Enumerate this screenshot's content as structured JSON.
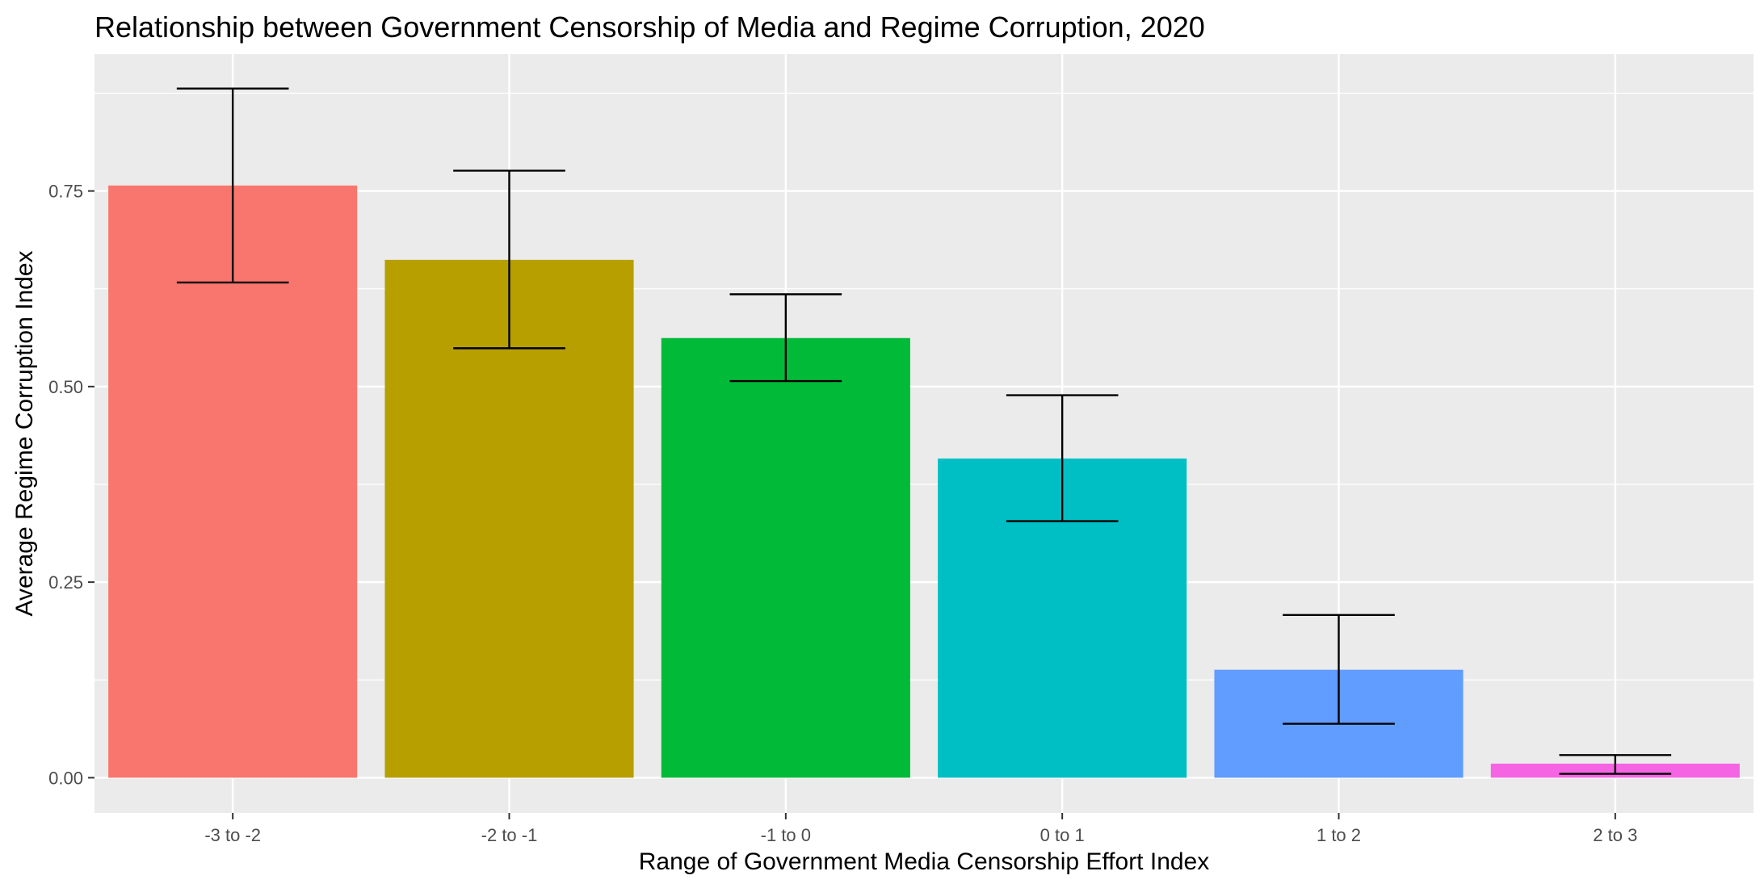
{
  "chart_data": {
    "type": "bar",
    "title": "Relationship between Government Censorship of Media and Regime Corruption, 2020",
    "xlabel": "Range of Government Media Censorship Effort Index",
    "ylabel": "Average Regime Corruption Index",
    "categories": [
      "-3 to -2",
      "-2 to -1",
      "-1 to 0",
      "0 to 1",
      "1 to 2",
      "2 to 3"
    ],
    "values": [
      0.757,
      0.662,
      0.562,
      0.408,
      0.138,
      0.018
    ],
    "error_lower": [
      0.633,
      0.549,
      0.507,
      0.328,
      0.069,
      0.005
    ],
    "error_upper": [
      0.881,
      0.776,
      0.618,
      0.489,
      0.208,
      0.029
    ],
    "colors": [
      "#F8766D",
      "#B79F00",
      "#00BA38",
      "#00BFC4",
      "#619CFF",
      "#F564E3"
    ],
    "yticks": [
      0.0,
      0.25,
      0.5,
      0.75
    ],
    "ytick_labels": [
      "0.00",
      "0.25",
      "0.50",
      "0.75"
    ],
    "ylim": [
      -0.045,
      0.925
    ],
    "grid": true,
    "legend": "none",
    "panel_background": "#EBEBEB",
    "gridline_color": "#FFFFFF"
  }
}
